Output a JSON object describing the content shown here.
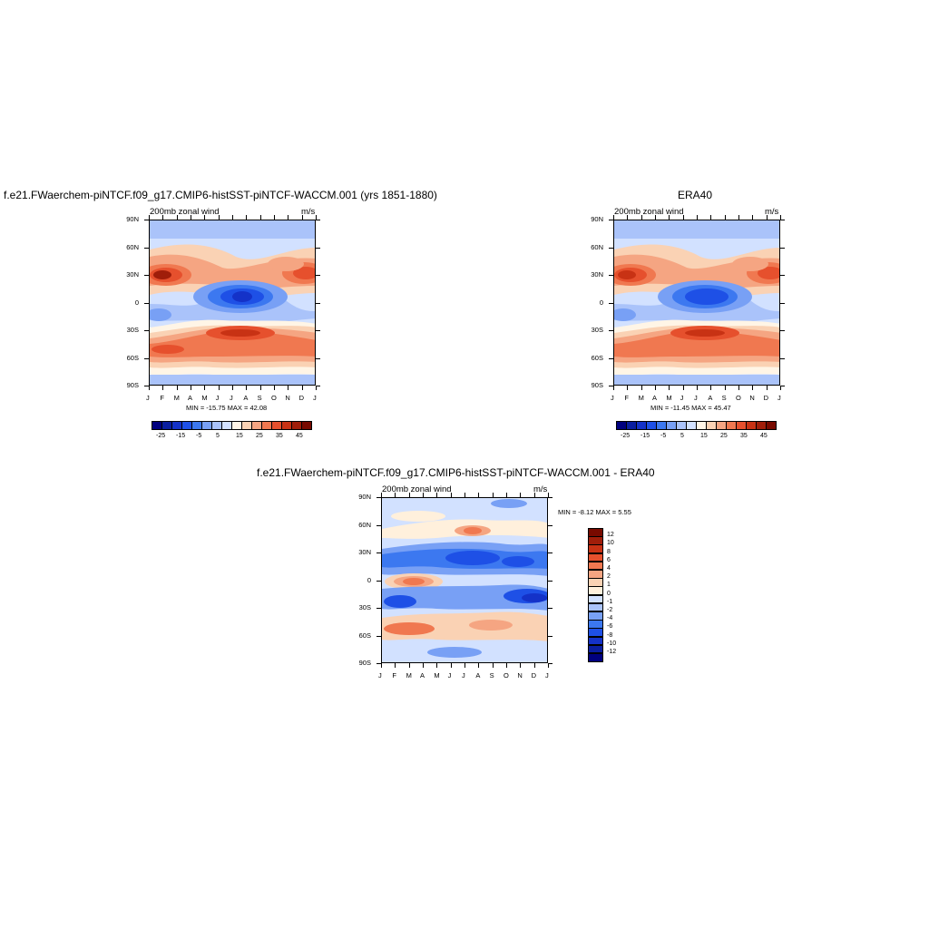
{
  "panels": [
    {
      "title": "f.e21.FWaerchem-piNTCF.f09_g17.CMIP6-histSST-piNTCF-WACCM.001 (yrs 1851-1880)",
      "left_label": "200mb zonal wind",
      "right_label": "m/s",
      "minmax": "MIN = -15.75 MAX =  42.08"
    },
    {
      "title": "ERA40",
      "left_label": "200mb zonal wind",
      "right_label": "m/s",
      "minmax": "MIN = -11.45 MAX =  45.47"
    },
    {
      "title": "f.e21.FWaerchem-piNTCF.f09_g17.CMIP6-histSST-piNTCF-WACCM.001 - ERA40",
      "left_label": "200mb zonal wind",
      "right_label": "m/s",
      "minmax": "MIN =  -8.12 MAX =   5.55"
    }
  ],
  "axes": {
    "y_ticks": [
      "90N",
      "60N",
      "30N",
      "0",
      "30S",
      "60S",
      "90S"
    ],
    "x_ticks": [
      "J",
      "F",
      "M",
      "A",
      "M",
      "J",
      "J",
      "A",
      "S",
      "O",
      "N",
      "D",
      "J"
    ]
  },
  "colorbar_abs": {
    "labels": [
      "-25",
      "-15",
      "-5",
      "5",
      "15",
      "25",
      "35",
      "45"
    ],
    "colors": [
      "#00007f",
      "#0a1ea0",
      "#1432c8",
      "#1e50e6",
      "#3c78f0",
      "#78a0f5",
      "#aac3fa",
      "#d2e1ff",
      "#fff5e6",
      "#fad2b4",
      "#f5a582",
      "#f07850",
      "#e6502d",
      "#c83214",
      "#a01e0a",
      "#780a00"
    ]
  },
  "colorbar_diff": {
    "labels": [
      "12",
      "10",
      "8",
      "6",
      "4",
      "2",
      "1",
      "0",
      "-1",
      "-2",
      "-4",
      "-6",
      "-8",
      "-10",
      "-12"
    ],
    "colors": [
      "#780a00",
      "#a01e0a",
      "#c83214",
      "#e6502d",
      "#f07850",
      "#f5a582",
      "#fad2b4",
      "#fff0dc",
      "#d2e1ff",
      "#aac3fa",
      "#78a0f5",
      "#3c78f0",
      "#1e50e6",
      "#1432c8",
      "#0a1ea0",
      "#00007f"
    ]
  },
  "chart_data": [
    {
      "type": "heatmap",
      "title": "f.e21.FWaerchem-piNTCF.f09_g17.CMIP6-histSST-piNTCF-WACCM.001 (yrs 1851-1880)",
      "variable": "200mb zonal wind",
      "units": "m/s",
      "x": [
        "J",
        "F",
        "M",
        "A",
        "M",
        "J",
        "J",
        "A",
        "S",
        "O",
        "N",
        "D",
        "J"
      ],
      "y": [
        "90N",
        "60N",
        "30N",
        "0",
        "30S",
        "60S",
        "90S"
      ],
      "min": -15.75,
      "max": 42.08
    },
    {
      "type": "heatmap",
      "title": "ERA40",
      "variable": "200mb zonal wind",
      "units": "m/s",
      "x": [
        "J",
        "F",
        "M",
        "A",
        "M",
        "J",
        "J",
        "A",
        "S",
        "O",
        "N",
        "D",
        "J"
      ],
      "y": [
        "90N",
        "60N",
        "30N",
        "0",
        "30S",
        "60S",
        "90S"
      ],
      "min": -11.45,
      "max": 45.47
    },
    {
      "type": "heatmap",
      "title": "f.e21.FWaerchem-piNTCF.f09_g17.CMIP6-histSST-piNTCF-WACCM.001 - ERA40",
      "variable": "200mb zonal wind",
      "units": "m/s",
      "x": [
        "J",
        "F",
        "M",
        "A",
        "M",
        "J",
        "J",
        "A",
        "S",
        "O",
        "N",
        "D",
        "J"
      ],
      "y": [
        "90N",
        "60N",
        "30N",
        "0",
        "30S",
        "60S",
        "90S"
      ],
      "min": -8.12,
      "max": 5.55
    }
  ]
}
